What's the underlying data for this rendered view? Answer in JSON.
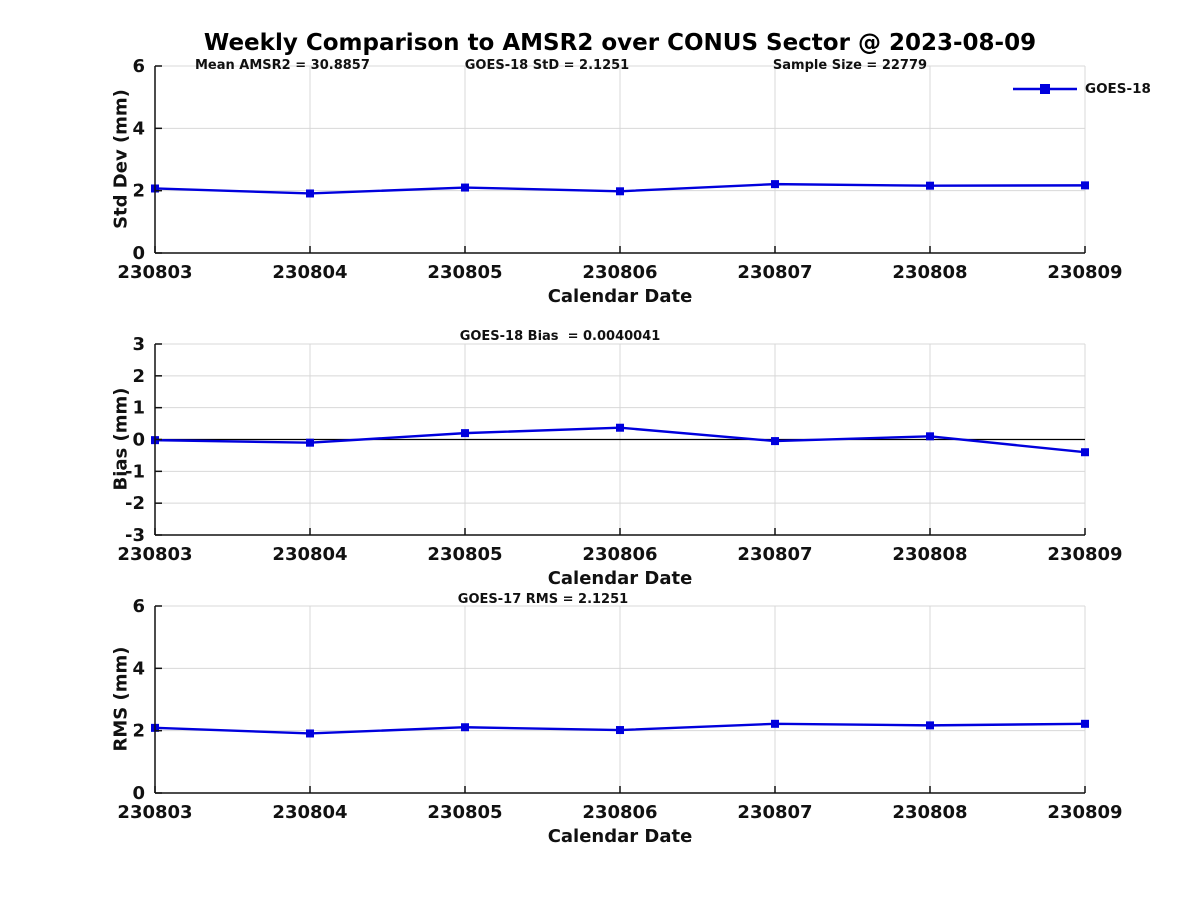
{
  "title": "Weekly Comparison to AMSR2 over CONUS Sector @ 2023-08-09",
  "annotations": {
    "mean_amsr2": "Mean AMSR2 = 30.8857",
    "goes18_std": "GOES-18 StD = 2.1251",
    "sample_size": "Sample Size = 22779",
    "goes18_bias": "GOES-18 Bias  = 0.0040041",
    "goes17_rms": "GOES-17 RMS = 2.1251"
  },
  "legend": {
    "label": "GOES-18"
  },
  "axes": {
    "stddev_ylabel": "Std Dev (mm)",
    "bias_ylabel": "Bias (mm)",
    "rms_ylabel": "RMS (mm)",
    "xlabel": "Calendar Date"
  },
  "colors": {
    "series_blue": "#0000DD",
    "grid_gray": "#d8d8d8",
    "axis_black": "#111111"
  },
  "chart_data": [
    {
      "type": "line",
      "title": "",
      "annotations": [
        "Mean AMSR2 = 30.8857",
        "GOES-18 StD = 2.1251",
        "Sample Size = 22779"
      ],
      "categories": [
        "230803",
        "230804",
        "230805",
        "230806",
        "230807",
        "230808",
        "230809"
      ],
      "series": [
        {
          "name": "GOES-18",
          "values": [
            2.07,
            1.91,
            2.1,
            1.98,
            2.21,
            2.16,
            2.17
          ],
          "color": "#0000DD",
          "marker": "square"
        }
      ],
      "xlabel": "Calendar Date",
      "ylabel": "Std Dev (mm)",
      "ylim": [
        0,
        6
      ],
      "yticks": [
        0,
        2,
        4,
        6
      ],
      "grid": true,
      "zero_line": false,
      "legend_position": "top-right-outside"
    },
    {
      "type": "line",
      "title": "",
      "annotations": [
        "GOES-18 Bias  = 0.0040041"
      ],
      "categories": [
        "230803",
        "230804",
        "230805",
        "230806",
        "230807",
        "230808",
        "230809"
      ],
      "series": [
        {
          "name": "GOES-18",
          "values": [
            -0.02,
            -0.1,
            0.2,
            0.37,
            -0.05,
            0.1,
            -0.4
          ],
          "color": "#0000DD",
          "marker": "square"
        }
      ],
      "xlabel": "Calendar Date",
      "ylabel": "Bias (mm)",
      "ylim": [
        -3,
        3
      ],
      "yticks": [
        -3,
        -2,
        -1,
        0,
        1,
        2,
        3
      ],
      "grid": true,
      "zero_line": true,
      "legend_position": "none"
    },
    {
      "type": "line",
      "title": "",
      "annotations": [
        "GOES-17 RMS = 2.1251"
      ],
      "categories": [
        "230803",
        "230804",
        "230805",
        "230806",
        "230807",
        "230808",
        "230809"
      ],
      "series": [
        {
          "name": "GOES-18",
          "values": [
            2.09,
            1.91,
            2.11,
            2.02,
            2.22,
            2.17,
            2.22
          ],
          "color": "#0000DD",
          "marker": "square"
        }
      ],
      "xlabel": "Calendar Date",
      "ylabel": "RMS (mm)",
      "ylim": [
        0,
        6
      ],
      "yticks": [
        0,
        2,
        4,
        6
      ],
      "grid": true,
      "zero_line": false,
      "legend_position": "none"
    }
  ]
}
